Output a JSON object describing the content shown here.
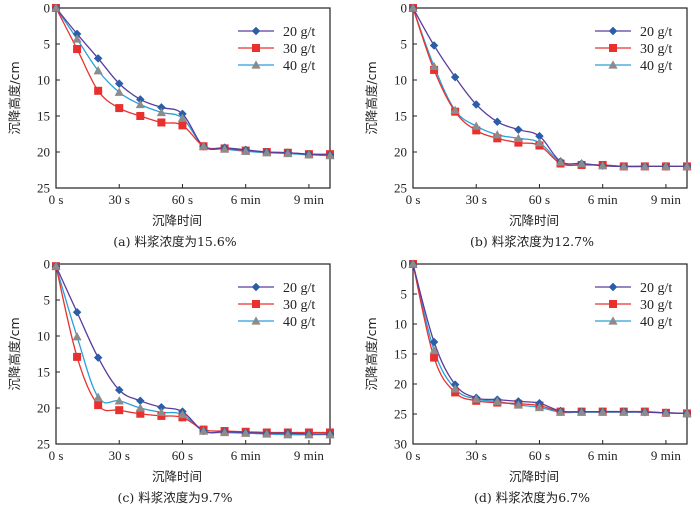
{
  "figure": {
    "x_axis_title": "沉降时间",
    "y_axis_title": "沉降高度/cm"
  },
  "legend": [
    {
      "name": "20 g/t",
      "line_color": "#5a3c9c",
      "marker": "diamond",
      "marker_color": "#2b5ea8"
    },
    {
      "name": "30 g/t",
      "line_color": "#e8312f",
      "marker": "square",
      "marker_color": "#e8312f"
    },
    {
      "name": "40 g/t",
      "line_color": "#2a9fd8",
      "marker": "triangle",
      "marker_color": "#8c8c8c"
    }
  ],
  "chart_data": [
    {
      "type": "line",
      "caption": "(a) 料浆浓度为15.6%",
      "xlabel": "沉降时间",
      "ylabel": "沉降高度/cm",
      "x": [
        "0 s",
        "10 s",
        "20 s",
        "30 s",
        "40 s",
        "50 s",
        "60 s",
        "4 min",
        "5 min",
        "6 min",
        "7 min",
        "8 min",
        "9 min",
        "10 min"
      ],
      "xticks": [
        {
          "index": 0,
          "label": "0 s"
        },
        {
          "index": 3,
          "label": "30 s"
        },
        {
          "index": 6,
          "label": "60 s"
        },
        {
          "index": 9,
          "label": "6 min"
        },
        {
          "index": 12,
          "label": "9 min"
        }
      ],
      "yticks": [
        "0",
        "5",
        "10",
        "15",
        "20",
        "25"
      ],
      "ylim": [
        0,
        25
      ],
      "y_inverted": true,
      "legend_position": "top-right",
      "series": [
        {
          "name": "20 g/t",
          "values": [
            0,
            3.6,
            7.0,
            10.5,
            12.7,
            13.8,
            14.7,
            19.2,
            19.4,
            19.7,
            20.0,
            20.1,
            20.3,
            20.4
          ]
        },
        {
          "name": "30 g/t",
          "values": [
            0,
            5.7,
            11.5,
            13.9,
            15.0,
            15.9,
            16.3,
            19.2,
            19.5,
            19.8,
            20.0,
            20.1,
            20.3,
            20.3
          ]
        },
        {
          "name": "40 g/t",
          "values": [
            0,
            4.3,
            8.7,
            11.7,
            13.4,
            14.5,
            15.3,
            19.2,
            19.6,
            19.9,
            20.1,
            20.2,
            20.4,
            20.5
          ]
        }
      ]
    },
    {
      "type": "line",
      "caption": "(b) 料浆浓度为12.7%",
      "xlabel": "沉降时间",
      "ylabel": "沉降高度/cm",
      "x": [
        "0 s",
        "10 s",
        "20 s",
        "30 s",
        "40 s",
        "50 s",
        "60 s",
        "4 min",
        "5 min",
        "6 min",
        "7 min",
        "8 min",
        "9 min",
        "10 min"
      ],
      "xticks": [
        {
          "index": 0,
          "label": "0 s"
        },
        {
          "index": 3,
          "label": "30 s"
        },
        {
          "index": 6,
          "label": "60 s"
        },
        {
          "index": 9,
          "label": "6 min"
        },
        {
          "index": 12,
          "label": "9 min"
        }
      ],
      "yticks": [
        "0",
        "5",
        "10",
        "15",
        "20",
        "25"
      ],
      "ylim": [
        0,
        25
      ],
      "y_inverted": true,
      "legend_position": "top-right",
      "series": [
        {
          "name": "20 g/t",
          "values": [
            0,
            5.2,
            9.6,
            13.4,
            15.8,
            16.9,
            17.8,
            21.3,
            21.6,
            21.9,
            22.0,
            22.0,
            22.0,
            22.0
          ]
        },
        {
          "name": "30 g/t",
          "values": [
            0,
            8.6,
            14.4,
            17.0,
            18.1,
            18.7,
            19.1,
            21.6,
            21.8,
            21.8,
            22.0,
            22.0,
            22.0,
            22.0
          ]
        },
        {
          "name": "40 g/t",
          "values": [
            0,
            8.1,
            14.2,
            16.4,
            17.6,
            18.1,
            18.7,
            21.4,
            21.6,
            21.9,
            22.0,
            22.0,
            22.0,
            22.0
          ]
        }
      ]
    },
    {
      "type": "line",
      "caption": "(c) 料浆浓度为9.7%",
      "xlabel": "沉降时间",
      "ylabel": "沉降高度/cm",
      "x": [
        "0 s",
        "10 s",
        "20 s",
        "30 s",
        "40 s",
        "50 s",
        "60 s",
        "4 min",
        "5 min",
        "6 min",
        "7 min",
        "8 min",
        "9 min",
        "10 min"
      ],
      "xticks": [
        {
          "index": 0,
          "label": "0 s"
        },
        {
          "index": 3,
          "label": "30 s"
        },
        {
          "index": 6,
          "label": "60 s"
        },
        {
          "index": 9,
          "label": "6 min"
        },
        {
          "index": 12,
          "label": "9 min"
        }
      ],
      "yticks": [
        "0",
        "5",
        "10",
        "15",
        "20",
        "25"
      ],
      "ylim": [
        0,
        25
      ],
      "y_inverted": true,
      "legend_position": "top-right",
      "series": [
        {
          "name": "20 g/t",
          "values": [
            0.3,
            6.7,
            13.0,
            17.5,
            19.0,
            19.9,
            20.5,
            23.2,
            23.3,
            23.4,
            23.5,
            23.5,
            23.6,
            23.6
          ]
        },
        {
          "name": "30 g/t",
          "values": [
            0.3,
            12.9,
            19.6,
            20.3,
            20.8,
            21.1,
            21.3,
            23.0,
            23.2,
            23.3,
            23.4,
            23.4,
            23.4,
            23.4
          ]
        },
        {
          "name": "40 g/t",
          "values": [
            0.3,
            10.1,
            18.5,
            19.0,
            20.0,
            20.6,
            20.9,
            23.2,
            23.4,
            23.5,
            23.6,
            23.7,
            23.7,
            23.7
          ]
        }
      ]
    },
    {
      "type": "line",
      "caption": "(d) 料浆浓度为6.7%",
      "xlabel": "沉降时间",
      "ylabel": "沉降高度/cm",
      "x": [
        "0 s",
        "10 s",
        "20 s",
        "30 s",
        "40 s",
        "50 s",
        "60 s",
        "4 min",
        "5 min",
        "6 min",
        "7 min",
        "8 min",
        "9 min",
        "10 min"
      ],
      "xticks": [
        {
          "index": 0,
          "label": "0 s"
        },
        {
          "index": 3,
          "label": "30 s"
        },
        {
          "index": 6,
          "label": "60 s"
        },
        {
          "index": 9,
          "label": "6 min"
        },
        {
          "index": 12,
          "label": "9 min"
        }
      ],
      "yticks": [
        "0",
        "5",
        "10",
        "15",
        "20",
        "25",
        "30"
      ],
      "ylim": [
        0,
        30
      ],
      "y_inverted": true,
      "legend_position": "top-right",
      "series": [
        {
          "name": "20 g/t",
          "values": [
            0,
            13.0,
            20.1,
            22.3,
            22.6,
            22.9,
            23.2,
            24.5,
            24.6,
            24.6,
            24.6,
            24.7,
            24.8,
            24.9
          ]
        },
        {
          "name": "30 g/t",
          "values": [
            0,
            15.6,
            21.4,
            22.8,
            23.1,
            23.3,
            23.6,
            24.6,
            24.6,
            24.6,
            24.6,
            24.6,
            24.8,
            24.9
          ]
        },
        {
          "name": "40 g/t",
          "values": [
            0,
            14.4,
            20.8,
            22.5,
            22.9,
            23.5,
            23.9,
            24.7,
            24.7,
            24.7,
            24.7,
            24.7,
            24.8,
            24.9
          ]
        }
      ]
    }
  ]
}
